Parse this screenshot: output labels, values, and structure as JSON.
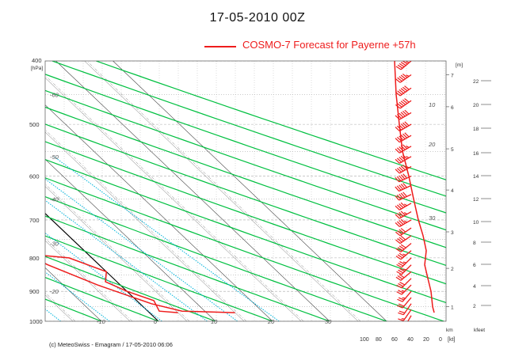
{
  "header": {
    "title": "17-05-2010  00Z",
    "legend": "COSMO-7 Forecast for Payerne   +57h"
  },
  "footer": {
    "credit": "(c) MeteoSwiss - Emagram  /  17-05-2010  06:06"
  },
  "colors": {
    "forecast": "#ee1c1c",
    "dry_adiabat": "#00c040",
    "isotherm": "#000000",
    "mixing_ratio": "#00b4dc"
  },
  "chart_data": {
    "type": "line",
    "title": "17-05-2010  00Z",
    "y_unit_label": "[hPa]",
    "pressure_ticks": [
      400,
      500,
      600,
      700,
      800,
      900,
      1000
    ],
    "x_ticks": [
      -10,
      0,
      10,
      20,
      30
    ],
    "isotherm_labels_top": [
      -60,
      -50,
      -40,
      -30,
      -20
    ],
    "isotherm_labels_left": [
      -60,
      -50,
      -40,
      -30,
      -20
    ],
    "adiabat_labels_right": [
      10,
      20,
      30
    ],
    "height_ticks_m": [
      "7",
      "6",
      "5",
      "4",
      "3",
      "2",
      "1"
    ],
    "height_unit_m": "[m]",
    "height_ticks_kfeet": [
      "22",
      "20",
      "18",
      "16",
      "14",
      "12",
      "10",
      "8",
      "6",
      "4",
      "2"
    ],
    "height_unit_kfeet": "kfeet",
    "wind_axis_ticks": [
      "100",
      "80",
      "60",
      "40",
      "20",
      "0"
    ],
    "wind_axis_unit": "[kt]",
    "wind_axis_km": "km",
    "series": [
      {
        "name": "temperature",
        "points": [
          [
            15,
            970
          ],
          [
            6,
            965
          ],
          [
            2,
            940
          ],
          [
            -4,
            880
          ],
          [
            -9,
            820
          ],
          [
            -12,
            770
          ],
          [
            -11,
            730
          ],
          [
            -7,
            700
          ],
          [
            -5,
            650
          ],
          [
            -6,
            610
          ],
          [
            -9,
            570
          ],
          [
            -13,
            520
          ],
          [
            -18,
            470
          ],
          [
            -22,
            430
          ],
          [
            -25,
            400
          ]
        ]
      },
      {
        "name": "dew point",
        "points": [
          [
            5,
            970
          ],
          [
            2,
            965
          ],
          [
            3,
            930
          ],
          [
            0,
            900
          ],
          [
            -2,
            870
          ],
          [
            0,
            840
          ],
          [
            -4,
            800
          ],
          [
            -10,
            790
          ],
          [
            -15,
            770
          ],
          [
            -16,
            750
          ],
          [
            -14,
            730
          ],
          [
            -15,
            700
          ],
          [
            -19,
            660
          ],
          [
            -21,
            610
          ],
          [
            -23,
            560
          ],
          [
            -26,
            500
          ],
          [
            -30,
            450
          ],
          [
            -34,
            400
          ]
        ]
      },
      {
        "name": "wind speed",
        "points": [
          [
            10,
            970
          ],
          [
            12,
            950
          ],
          [
            14,
            900
          ],
          [
            18,
            860
          ],
          [
            22,
            820
          ],
          [
            20,
            780
          ],
          [
            24,
            740
          ],
          [
            30,
            700
          ],
          [
            36,
            650
          ],
          [
            42,
            600
          ],
          [
            50,
            550
          ],
          [
            54,
            500
          ],
          [
            58,
            450
          ],
          [
            60,
            400
          ]
        ]
      }
    ],
    "wind_barbs": [
      {
        "p": 980,
        "dir": 210,
        "spd": 15
      },
      {
        "p": 960,
        "dir": 215,
        "spd": 15
      },
      {
        "p": 940,
        "dir": 215,
        "spd": 20
      },
      {
        "p": 920,
        "dir": 220,
        "spd": 20
      },
      {
        "p": 900,
        "dir": 220,
        "spd": 25
      },
      {
        "p": 880,
        "dir": 225,
        "spd": 25
      },
      {
        "p": 860,
        "dir": 225,
        "spd": 30
      },
      {
        "p": 840,
        "dir": 230,
        "spd": 30
      },
      {
        "p": 820,
        "dir": 225,
        "spd": 35
      },
      {
        "p": 800,
        "dir": 225,
        "spd": 35
      },
      {
        "p": 780,
        "dir": 230,
        "spd": 35
      },
      {
        "p": 760,
        "dir": 230,
        "spd": 40
      },
      {
        "p": 740,
        "dir": 235,
        "spd": 40
      },
      {
        "p": 720,
        "dir": 235,
        "spd": 40
      },
      {
        "p": 700,
        "dir": 240,
        "spd": 45
      },
      {
        "p": 680,
        "dir": 240,
        "spd": 45
      },
      {
        "p": 660,
        "dir": 240,
        "spd": 45
      },
      {
        "p": 640,
        "dir": 245,
        "spd": 50
      },
      {
        "p": 620,
        "dir": 245,
        "spd": 50
      },
      {
        "p": 600,
        "dir": 245,
        "spd": 50
      },
      {
        "p": 580,
        "dir": 240,
        "spd": 55
      },
      {
        "p": 560,
        "dir": 240,
        "spd": 55
      },
      {
        "p": 540,
        "dir": 240,
        "spd": 55
      },
      {
        "p": 520,
        "dir": 240,
        "spd": 60
      },
      {
        "p": 500,
        "dir": 240,
        "spd": 60
      },
      {
        "p": 480,
        "dir": 240,
        "spd": 60
      },
      {
        "p": 460,
        "dir": 235,
        "spd": 60
      },
      {
        "p": 440,
        "dir": 235,
        "spd": 60
      },
      {
        "p": 420,
        "dir": 235,
        "spd": 55
      },
      {
        "p": 400,
        "dir": 230,
        "spd": 55
      }
    ],
    "grid": true
  }
}
